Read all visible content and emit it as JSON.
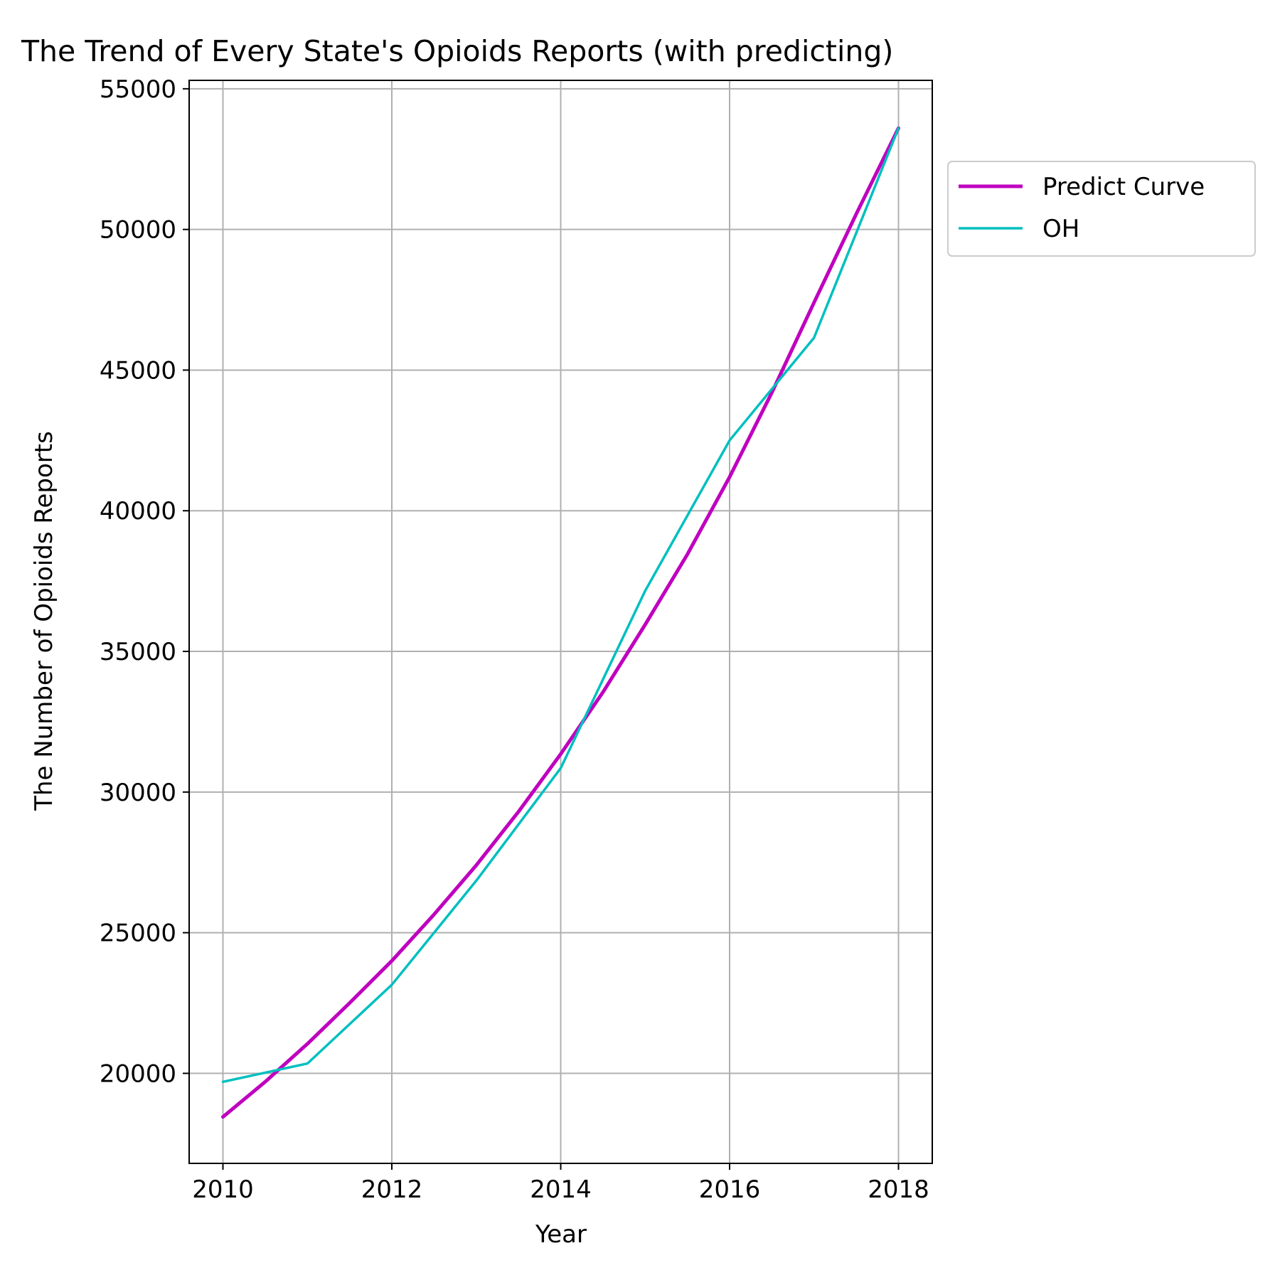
{
  "chart_data": {
    "type": "line",
    "title": "The Trend of Every State's Opioids Reports (with predicting)",
    "xlabel": "Year",
    "ylabel": "The Number of Opioids Reports",
    "xlim": [
      2009.6,
      2018.4
    ],
    "ylim": [
      16800,
      55300
    ],
    "xticks": [
      "2010",
      "2012",
      "2014",
      "2016",
      "2018"
    ],
    "xtick_values": [
      2010,
      2012,
      2014,
      2016,
      2018
    ],
    "yticks": [
      "20000",
      "25000",
      "30000",
      "35000",
      "40000",
      "45000",
      "50000",
      "55000"
    ],
    "ytick_values": [
      20000,
      25000,
      30000,
      35000,
      40000,
      45000,
      50000,
      55000
    ],
    "grid": true,
    "legend_placement": "outside upper right",
    "series": [
      {
        "name": "Predict Curve",
        "color": "#bf00bf",
        "x": [
          2010,
          2010.5,
          2011,
          2011.5,
          2012,
          2012.5,
          2013,
          2013.5,
          2014,
          2014.5,
          2015,
          2015.5,
          2016,
          2016.5,
          2017,
          2017.5,
          2018
        ],
        "y": [
          18450,
          19700,
          21050,
          22500,
          24000,
          25650,
          27400,
          29300,
          31350,
          33550,
          35950,
          38450,
          41200,
          44200,
          47400,
          50550,
          53600
        ]
      },
      {
        "name": "OH",
        "color": "#00bfbf",
        "x": [
          2010,
          2011,
          2012,
          2013,
          2014,
          2015,
          2016,
          2017,
          2018
        ],
        "y": [
          19700,
          20350,
          23150,
          26850,
          30850,
          37150,
          42500,
          46150,
          53600
        ]
      }
    ]
  }
}
